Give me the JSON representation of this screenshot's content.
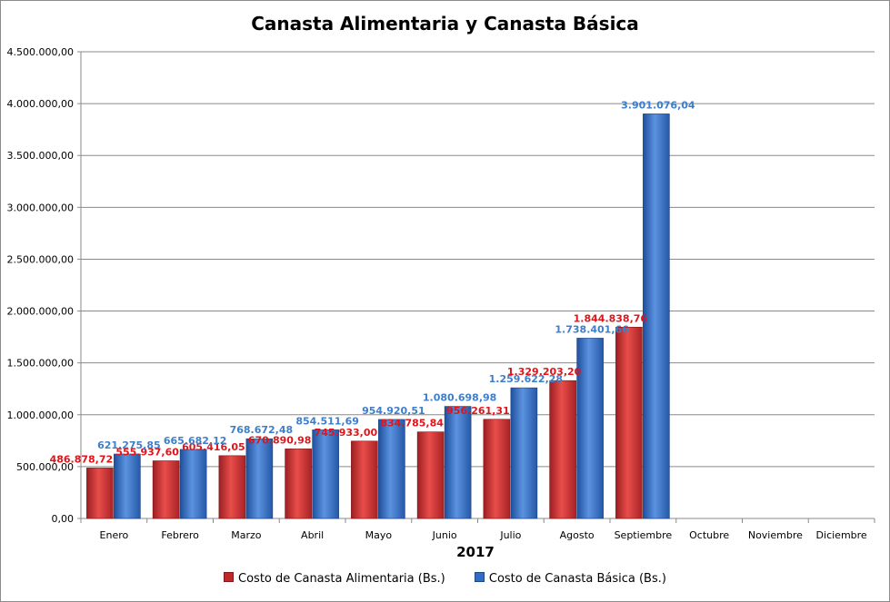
{
  "chart_data": {
    "type": "bar",
    "title": "Canasta Alimentaria y Canasta Básica",
    "xlabel": "2017",
    "ylabel": "",
    "ylim": [
      0,
      4500000
    ],
    "grid": true,
    "legend_position": "bottom",
    "y_ticks": [
      0,
      500000,
      1000000,
      1500000,
      2000000,
      2500000,
      3000000,
      3500000,
      4000000,
      4500000
    ],
    "y_tick_labels": [
      "0,00",
      "500.000,00",
      "1.000.000,00",
      "1.500.000,00",
      "2.000.000,00",
      "2.500.000,00",
      "3.000.000,00",
      "3.500.000,00",
      "4.000.000,00",
      "4.500.000,00"
    ],
    "categories": [
      "Enero",
      "Febrero",
      "Marzo",
      "Abril",
      "Mayo",
      "Junio",
      "Julio",
      "Agosto",
      "Septiembre",
      "Octubre",
      "Noviembre",
      "Diciembre"
    ],
    "series": [
      {
        "name": "Costo de Canasta Alimentaria (Bs.)",
        "color": "#c0282a",
        "values": [
          486878.72,
          555937.6,
          605416.05,
          670890.98,
          745933.0,
          834785.84,
          956261.31,
          1329203.2,
          1844838.76,
          null,
          null,
          null
        ],
        "labels": [
          "486.878,72",
          "555.937,60",
          "605.416,05",
          "670.890,98",
          "745.933,00",
          "834.785,84",
          "956.261,31",
          "1.329.203,20",
          "1.844.838,76",
          "",
          "",
          ""
        ]
      },
      {
        "name": "Costo de Canasta Básica (Bs.)",
        "color": "#2e6cc6",
        "values": [
          621275.85,
          665682.12,
          768672.48,
          854511.69,
          954920.51,
          1080698.98,
          1259622.28,
          1738401.66,
          3901076.04,
          null,
          null,
          null
        ],
        "labels": [
          "621.275,85",
          "665.682,12",
          "768.672,48",
          "854.511,69",
          "954.920,51",
          "1.080.698,98",
          "1.259.622,28",
          "1.738.401,66",
          "3.901.076,04",
          "",
          "",
          ""
        ]
      }
    ]
  }
}
